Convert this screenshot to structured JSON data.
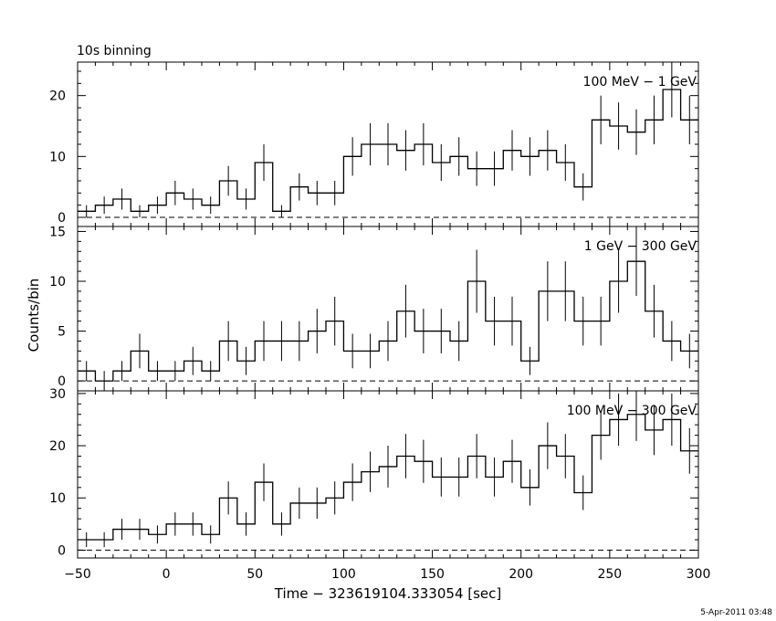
{
  "header": {
    "title": "10s binning"
  },
  "footer": {
    "timestamp": "5-Apr-2011 03:48"
  },
  "axes": {
    "xlabel": "Time − 323619104.333054 [sec]",
    "ylabel": "Counts/bin"
  },
  "chart_data": {
    "type": "line",
    "title": "10s binning",
    "xlabel": "Time − 323619104.333054 [sec]",
    "ylabel": "Counts/bin",
    "xlim": [
      -50,
      300
    ],
    "x_ticks": [
      "−50",
      "0",
      "50",
      "100",
      "150",
      "200",
      "250",
      "300"
    ],
    "bin_width": 10,
    "grid": false,
    "zero_reference_line": "dashed",
    "panels": [
      {
        "label": "100 MeV − 1 GeV",
        "ylim": [
          -1.5,
          25.5
        ],
        "y_ticks": [
          0,
          10,
          20
        ],
        "x_start": -50,
        "values": [
          1,
          2,
          3,
          1,
          2,
          4,
          3,
          2,
          6,
          3,
          9,
          1,
          5,
          4,
          4,
          10,
          12,
          12,
          11,
          12,
          9,
          10,
          8,
          8,
          11,
          10,
          11,
          9,
          5,
          16,
          15,
          14,
          16,
          21,
          16
        ]
      },
      {
        "label": "1 GeV − 300 GeV",
        "ylim": [
          -1,
          15.5
        ],
        "y_ticks": [
          0,
          5,
          10,
          15
        ],
        "x_start": -50,
        "values": [
          1,
          0,
          1,
          3,
          1,
          1,
          2,
          1,
          4,
          2,
          4,
          4,
          4,
          5,
          6,
          3,
          3,
          4,
          7,
          5,
          5,
          4,
          10,
          6,
          6,
          2,
          9,
          9,
          6,
          6,
          10,
          12,
          7,
          4,
          3
        ]
      },
      {
        "label": "100 MeV − 300 GeV",
        "ylim": [
          -1.5,
          30.5
        ],
        "y_ticks": [
          0,
          10,
          20,
          30
        ],
        "x_start": -50,
        "values": [
          2,
          2,
          4,
          4,
          3,
          5,
          5,
          3,
          10,
          5,
          13,
          5,
          9,
          9,
          10,
          13,
          15,
          16,
          18,
          17,
          14,
          14,
          18,
          14,
          17,
          12,
          20,
          18,
          11,
          22,
          25,
          26,
          23,
          25,
          19
        ]
      }
    ]
  }
}
